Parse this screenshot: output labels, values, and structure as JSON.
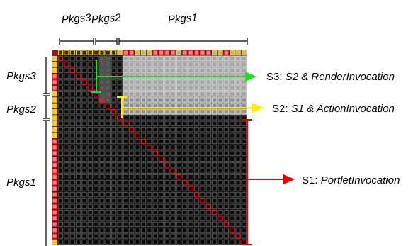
{
  "top_labels": {
    "pkgs3": "Pkgs3",
    "pkgs2": "Pkgs2",
    "pkgs1": "Pkgs1"
  },
  "left_labels": {
    "pkgs3": "Pkgs3",
    "pkgs2": "Pkgs2",
    "pkgs1": "Pkgs1"
  },
  "annotations": [
    {
      "prefix": "S3: ",
      "text": "S2 & RenderInvocation",
      "color": "#22dd22"
    },
    {
      "prefix": "S2: ",
      "text": "S1 & ActionInvocation",
      "color": "#ffee00"
    },
    {
      "prefix": "S1: ",
      "text": "PortletInvocation",
      "color": "#ee0000"
    }
  ],
  "colors": {
    "matrix_bg": "#0a0a0a",
    "cell_outline": "#4a4a4a",
    "diagonal_outline": "#e8141e",
    "border_cell_fill": "#f2c53a",
    "border_cell_red_fill": "#d98a8a",
    "region_gray": "#a6a6a6",
    "region_dark": "#5a5a5a"
  }
}
